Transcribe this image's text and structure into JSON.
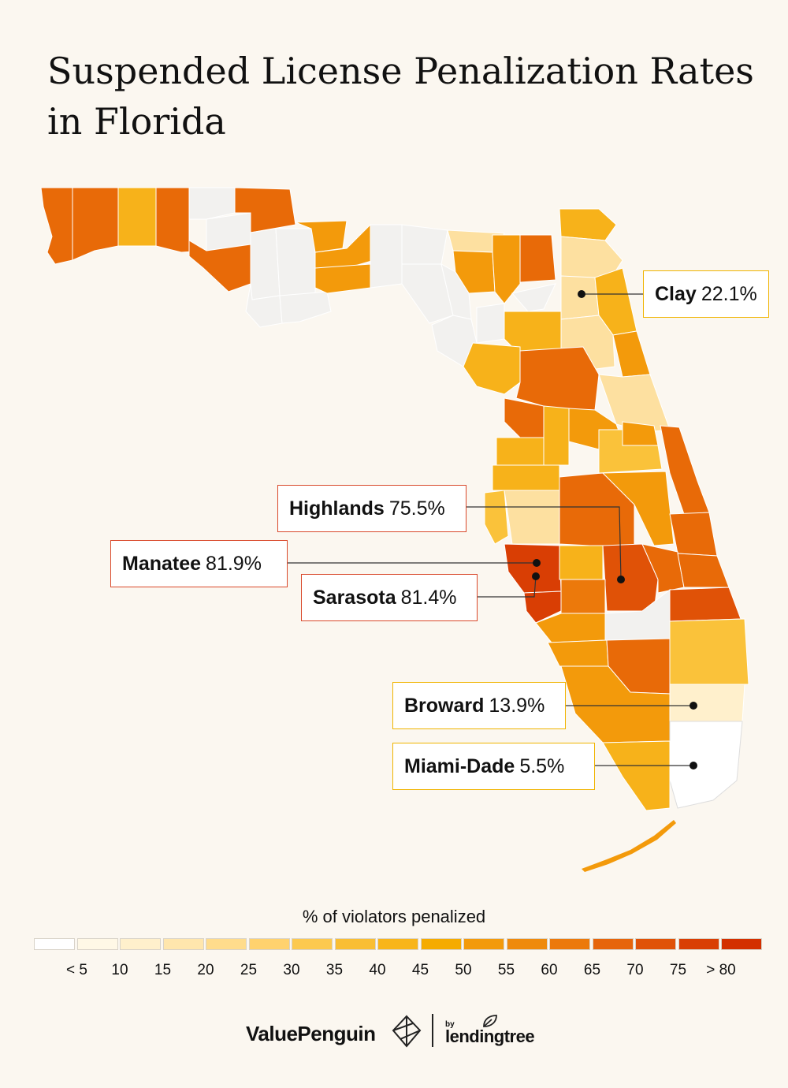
{
  "title": "Suspended License Penalization Rates in Florida",
  "callouts": [
    {
      "county": "Clay",
      "value": "22.1%",
      "accent": "#f0b400"
    },
    {
      "county": "Highlands",
      "value": "75.5%",
      "accent": "#d9482a"
    },
    {
      "county": "Manatee",
      "value": "81.9%",
      "accent": "#d9482a"
    },
    {
      "county": "Sarasota",
      "value": "81.4%",
      "accent": "#d9482a"
    },
    {
      "county": "Broward",
      "value": "13.9%",
      "accent": "#f0b400"
    },
    {
      "county": "Miami-Dade",
      "value": "5.5%",
      "accent": "#f0b400"
    }
  ],
  "legend": {
    "title": "% of violators penalized",
    "colors": [
      "#ffffff",
      "#fff8e6",
      "#fff0cc",
      "#ffe6ad",
      "#ffdc8c",
      "#ffd26e",
      "#fcc94f",
      "#f9be33",
      "#f8b51a",
      "#f5ab00",
      "#f39a0b",
      "#ef8a0c",
      "#ec790b",
      "#e6650b",
      "#e05207",
      "#d93e04",
      "#d33000"
    ],
    "labels": [
      "< 5",
      "10",
      "15",
      "20",
      "25",
      "30",
      "35",
      "40",
      "45",
      "50",
      "55",
      "60",
      "65",
      "70",
      "75",
      "> 80"
    ]
  },
  "map_colors": {
    "lightest": "#f2f1ef",
    "pale": "#fde0a0",
    "yellow": "#fac23a",
    "amber": "#f7b21a",
    "orange": "#f39a0b",
    "deep_orange": "#e86a08",
    "red": "#d93e04"
  },
  "brand": {
    "valuepenguin": "ValuePenguin",
    "by": "by",
    "lendingtree": "lendingtree"
  }
}
